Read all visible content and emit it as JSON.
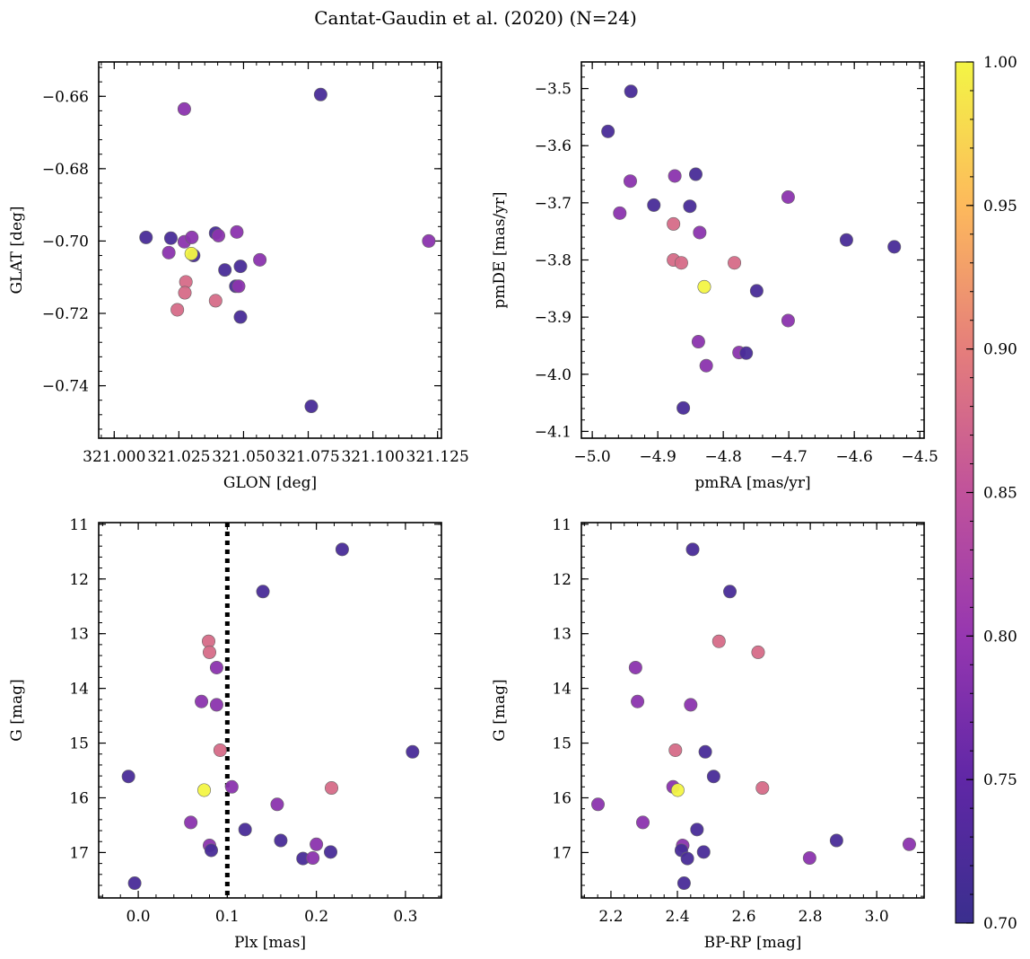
{
  "figure_title": "Cantat-Gaudin et al. (2020) (N=24)",
  "colorbar": {
    "min": 0.7,
    "max": 1.0,
    "ticks": [
      "0.70",
      "0.75",
      "0.80",
      "0.85",
      "0.90",
      "0.95",
      "1.00"
    ],
    "colormap": "plasma"
  },
  "chart_data": [
    {
      "type": "scatter",
      "xlabel": "GLON [deg]",
      "ylabel": "GLAT [deg]",
      "xlim": [
        320.994,
        321.1265
      ],
      "ylim": [
        -0.7545,
        -0.6505
      ],
      "xticks": [
        321.0,
        321.025,
        321.05,
        321.075,
        321.1,
        321.125
      ],
      "xtick_labels": [
        "321.000",
        "321.025",
        "321.050",
        "321.075",
        "321.100",
        "321.125"
      ],
      "yticks": [
        -0.74,
        -0.72,
        -0.7,
        -0.68,
        -0.66
      ],
      "ytick_labels": [
        "−0.74",
        "−0.72",
        "−0.70",
        "−0.68",
        "−0.66"
      ],
      "points": [
        {
          "x": 321.0123,
          "y": -0.699,
          "c": 0.72
        },
        {
          "x": 321.0219,
          "y": -0.6992,
          "c": 0.72
        },
        {
          "x": 321.0271,
          "y": -0.6635,
          "c": 0.79
        },
        {
          "x": 321.0798,
          "y": -0.6595,
          "c": 0.72
        },
        {
          "x": 321.1216,
          "y": -0.7,
          "c": 0.79
        },
        {
          "x": 321.0211,
          "y": -0.7032,
          "c": 0.79
        },
        {
          "x": 321.0271,
          "y": -0.7002,
          "c": 0.79
        },
        {
          "x": 321.03,
          "y": -0.699,
          "c": 0.79
        },
        {
          "x": 321.0307,
          "y": -0.704,
          "c": 0.72
        },
        {
          "x": 321.0392,
          "y": -0.6978,
          "c": 0.72
        },
        {
          "x": 321.0403,
          "y": -0.6985,
          "c": 0.79
        },
        {
          "x": 321.0474,
          "y": -0.6975,
          "c": 0.79
        },
        {
          "x": 321.0563,
          "y": -0.7052,
          "c": 0.79
        },
        {
          "x": 321.0428,
          "y": -0.708,
          "c": 0.72
        },
        {
          "x": 321.0488,
          "y": -0.707,
          "c": 0.72
        },
        {
          "x": 321.047,
          "y": -0.7125,
          "c": 0.72
        },
        {
          "x": 321.0481,
          "y": -0.7125,
          "c": 0.79
        },
        {
          "x": 321.0488,
          "y": -0.721,
          "c": 0.72
        },
        {
          "x": 321.0277,
          "y": -0.7113,
          "c": 0.88
        },
        {
          "x": 321.0273,
          "y": -0.7143,
          "c": 0.88
        },
        {
          "x": 321.0392,
          "y": -0.7165,
          "c": 0.88
        },
        {
          "x": 321.0244,
          "y": -0.719,
          "c": 0.88
        },
        {
          "x": 321.0298,
          "y": -0.7035,
          "c": 1.0
        },
        {
          "x": 321.0762,
          "y": -0.7457,
          "c": 0.72
        }
      ]
    },
    {
      "type": "scatter",
      "xlabel": "pmRA [mas/yr]",
      "ylabel": "pmDE [mas/yr]",
      "xlim": [
        -5.0166,
        -4.4934
      ],
      "ylim": [
        -4.1119,
        -3.4535
      ],
      "xticks": [
        -5.0,
        -4.9,
        -4.8,
        -4.7,
        -4.6,
        -4.5
      ],
      "xtick_labels": [
        "−5.0",
        "−4.9",
        "−4.8",
        "−4.7",
        "−4.6",
        "−4.5"
      ],
      "yticks": [
        -4.1,
        -4.0,
        -3.9,
        -3.8,
        -3.7,
        -3.6,
        -3.5
      ],
      "ytick_labels": [
        "−4.1",
        "−4.0",
        "−3.9",
        "−3.8",
        "−3.7",
        "−3.6",
        "−3.5"
      ],
      "points": [
        {
          "x": -4.941,
          "y": -3.505,
          "c": 0.72
        },
        {
          "x": -4.976,
          "y": -3.575,
          "c": 0.72
        },
        {
          "x": -4.942,
          "y": -3.662,
          "c": 0.79
        },
        {
          "x": -4.958,
          "y": -3.718,
          "c": 0.79
        },
        {
          "x": -4.906,
          "y": -3.704,
          "c": 0.72
        },
        {
          "x": -4.874,
          "y": -3.653,
          "c": 0.79
        },
        {
          "x": -4.842,
          "y": -3.65,
          "c": 0.72
        },
        {
          "x": -4.851,
          "y": -3.706,
          "c": 0.72
        },
        {
          "x": -4.701,
          "y": -3.69,
          "c": 0.79
        },
        {
          "x": -4.876,
          "y": -3.737,
          "c": 0.88
        },
        {
          "x": -4.836,
          "y": -3.752,
          "c": 0.79
        },
        {
          "x": -4.612,
          "y": -3.765,
          "c": 0.72
        },
        {
          "x": -4.539,
          "y": -3.777,
          "c": 0.72
        },
        {
          "x": -4.876,
          "y": -3.8,
          "c": 0.88
        },
        {
          "x": -4.864,
          "y": -3.805,
          "c": 0.88
        },
        {
          "x": -4.783,
          "y": -3.805,
          "c": 0.88
        },
        {
          "x": -4.829,
          "y": -3.847,
          "c": 1.0
        },
        {
          "x": -4.749,
          "y": -3.854,
          "c": 0.72
        },
        {
          "x": -4.701,
          "y": -3.906,
          "c": 0.79
        },
        {
          "x": -4.838,
          "y": -3.943,
          "c": 0.79
        },
        {
          "x": -4.776,
          "y": -3.962,
          "c": 0.79
        },
        {
          "x": -4.765,
          "y": -3.963,
          "c": 0.72
        },
        {
          "x": -4.826,
          "y": -3.985,
          "c": 0.79
        },
        {
          "x": -4.861,
          "y": -4.059,
          "c": 0.72
        }
      ]
    },
    {
      "type": "scatter",
      "xlabel": "Plx [mas]",
      "ylabel": "G [mag]",
      "xlim": [
        -0.0444,
        0.3404
      ],
      "ylim": [
        17.83,
        10.97
      ],
      "y_inverted": true,
      "vline": 0.1,
      "xticks": [
        0.0,
        0.1,
        0.2,
        0.3
      ],
      "xtick_labels": [
        "0.0",
        "0.1",
        "0.2",
        "0.3"
      ],
      "yticks": [
        11,
        12,
        13,
        14,
        15,
        16,
        17
      ],
      "ytick_labels": [
        "11",
        "12",
        "13",
        "14",
        "15",
        "16",
        "17"
      ],
      "points": [
        {
          "x": 0.229,
          "y": 11.46,
          "c": 0.72
        },
        {
          "x": 0.14,
          "y": 12.23,
          "c": 0.72
        },
        {
          "x": 0.079,
          "y": 13.14,
          "c": 0.88
        },
        {
          "x": 0.08,
          "y": 13.34,
          "c": 0.88
        },
        {
          "x": 0.088,
          "y": 13.62,
          "c": 0.79
        },
        {
          "x": 0.071,
          "y": 14.24,
          "c": 0.79
        },
        {
          "x": 0.088,
          "y": 14.3,
          "c": 0.79
        },
        {
          "x": 0.092,
          "y": 15.13,
          "c": 0.88
        },
        {
          "x": 0.308,
          "y": 15.16,
          "c": 0.72
        },
        {
          "x": -0.011,
          "y": 15.61,
          "c": 0.72
        },
        {
          "x": 0.105,
          "y": 15.8,
          "c": 0.79
        },
        {
          "x": 0.217,
          "y": 15.82,
          "c": 0.88
        },
        {
          "x": 0.074,
          "y": 15.86,
          "c": 1.0
        },
        {
          "x": 0.156,
          "y": 16.12,
          "c": 0.79
        },
        {
          "x": 0.059,
          "y": 16.45,
          "c": 0.79
        },
        {
          "x": 0.12,
          "y": 16.58,
          "c": 0.72
        },
        {
          "x": 0.16,
          "y": 16.78,
          "c": 0.72
        },
        {
          "x": 0.2,
          "y": 16.85,
          "c": 0.79
        },
        {
          "x": 0.08,
          "y": 16.87,
          "c": 0.79
        },
        {
          "x": 0.082,
          "y": 16.96,
          "c": 0.72
        },
        {
          "x": 0.216,
          "y": 16.99,
          "c": 0.72
        },
        {
          "x": 0.185,
          "y": 17.11,
          "c": 0.72
        },
        {
          "x": 0.196,
          "y": 17.1,
          "c": 0.79
        },
        {
          "x": -0.004,
          "y": 17.56,
          "c": 0.72
        }
      ]
    },
    {
      "type": "scatter",
      "xlabel": "BP-RP [mag]",
      "ylabel": "G [mag]",
      "xlim": [
        2.111,
        3.1427
      ],
      "ylim": [
        17.83,
        10.97
      ],
      "y_inverted": true,
      "xticks": [
        2.2,
        2.4,
        2.6,
        2.8,
        3.0
      ],
      "xtick_labels": [
        "2.2",
        "2.4",
        "2.6",
        "2.8",
        "3.0"
      ],
      "yticks": [
        11,
        12,
        13,
        14,
        15,
        16,
        17
      ],
      "ytick_labels": [
        "11",
        "12",
        "13",
        "14",
        "15",
        "16",
        "17"
      ],
      "points": [
        {
          "x": 2.446,
          "y": 11.46,
          "c": 0.72
        },
        {
          "x": 2.558,
          "y": 12.23,
          "c": 0.72
        },
        {
          "x": 2.525,
          "y": 13.14,
          "c": 0.88
        },
        {
          "x": 2.643,
          "y": 13.34,
          "c": 0.88
        },
        {
          "x": 2.274,
          "y": 13.62,
          "c": 0.79
        },
        {
          "x": 2.28,
          "y": 14.24,
          "c": 0.79
        },
        {
          "x": 2.44,
          "y": 14.3,
          "c": 0.79
        },
        {
          "x": 2.394,
          "y": 15.13,
          "c": 0.88
        },
        {
          "x": 2.484,
          "y": 15.16,
          "c": 0.72
        },
        {
          "x": 2.509,
          "y": 15.61,
          "c": 0.72
        },
        {
          "x": 2.387,
          "y": 15.8,
          "c": 0.79
        },
        {
          "x": 2.656,
          "y": 15.82,
          "c": 0.88
        },
        {
          "x": 2.401,
          "y": 15.86,
          "c": 1.0
        },
        {
          "x": 2.161,
          "y": 16.12,
          "c": 0.79
        },
        {
          "x": 2.296,
          "y": 16.45,
          "c": 0.79
        },
        {
          "x": 2.459,
          "y": 16.58,
          "c": 0.72
        },
        {
          "x": 2.879,
          "y": 16.78,
          "c": 0.72
        },
        {
          "x": 3.098,
          "y": 16.85,
          "c": 0.79
        },
        {
          "x": 2.416,
          "y": 16.87,
          "c": 0.79
        },
        {
          "x": 2.412,
          "y": 16.96,
          "c": 0.72
        },
        {
          "x": 2.479,
          "y": 16.99,
          "c": 0.72
        },
        {
          "x": 2.43,
          "y": 17.11,
          "c": 0.72
        },
        {
          "x": 2.798,
          "y": 17.1,
          "c": 0.79
        },
        {
          "x": 2.42,
          "y": 17.56,
          "c": 0.72
        }
      ]
    }
  ]
}
